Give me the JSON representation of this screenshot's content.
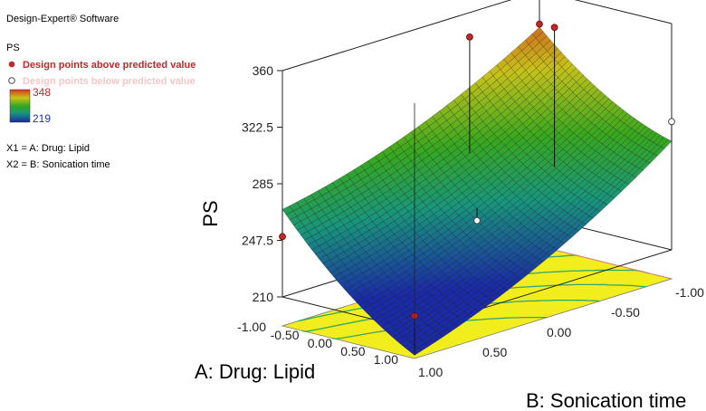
{
  "header": {
    "software": "Design-Expert® Software",
    "response": "PS",
    "above_label": "Design points above predicted value",
    "below_label": "Design points below predicted value",
    "color_max": "348",
    "color_min": "219",
    "x1_def": "X1 = A: Drug: Lipid",
    "x2_def": "X2 = B: Sonication time"
  },
  "colors": {
    "above_point": "#c0282a",
    "below_point": "#f4c6c6",
    "grid_line": "#202020",
    "floor": "#f2ee1e",
    "contour": "#2fa86b",
    "floor_top_line": "#e07a7a"
  },
  "chart_data": {
    "type": "surface",
    "zlabel": "PS",
    "xlabel": "A: Drug: Lipid",
    "ylabel": "B: Sonication time",
    "zlim": [
      210,
      360
    ],
    "z_ticks": [
      "210",
      "247.5",
      "285",
      "322.5",
      "360"
    ],
    "a_ticks": [
      "-1.00",
      "-0.50",
      "0.00",
      "0.50",
      "1.00"
    ],
    "b_ticks": [
      "-1.00",
      "-0.50",
      "0.00",
      "0.50",
      "1.00"
    ],
    "surface_range": [
      219,
      348
    ],
    "design_points": [
      {
        "A": 1,
        "B": 1,
        "PS": 219,
        "above": true
      },
      {
        "A": 1,
        "B": -1,
        "PS": 295,
        "above": false
      },
      {
        "A": -1,
        "B": -1,
        "PS": 338,
        "above": true
      },
      {
        "A": -1,
        "B": 1,
        "PS": 250,
        "above": true
      },
      {
        "A": 0,
        "B": 0,
        "PS": 245,
        "above": false
      },
      {
        "A": -0.5,
        "B": -0.2,
        "PS": 356,
        "above": true
      },
      {
        "A": 0.2,
        "B": -0.5,
        "PS": 362,
        "above": true
      }
    ]
  }
}
